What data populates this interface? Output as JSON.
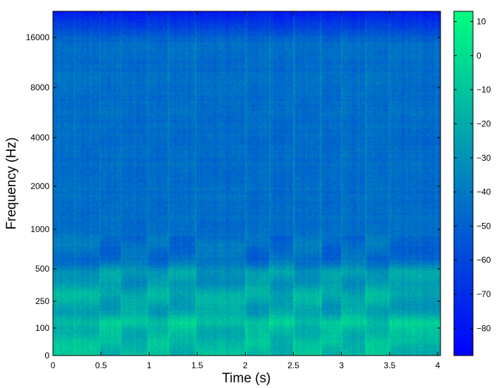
{
  "chart_data": {
    "type": "heatmap",
    "title": "",
    "xlabel": "Time (s)",
    "ylabel": "Frequency (Hz)",
    "xlim": [
      0,
      4.03
    ],
    "x_ticks": [
      0,
      0.5,
      1,
      1.5,
      2,
      2.5,
      3,
      3.5,
      4
    ],
    "x_tick_labels": [
      "0",
      "0.5",
      "1",
      "1.5",
      "2",
      "2.5",
      "3",
      "3.5",
      "4"
    ],
    "y_scale": "warped frequency (spectrogram)",
    "ylim": [
      0,
      22050
    ],
    "y_ticks": [
      0,
      100,
      250,
      500,
      1000,
      2000,
      4000,
      8000,
      16000
    ],
    "y_tick_labels": [
      "0",
      "100",
      "250",
      "500",
      "1000",
      "2000",
      "4000",
      "8000",
      "16000"
    ],
    "colorbar": {
      "range": [
        -88,
        13
      ],
      "ticks": [
        10,
        0,
        -10,
        -20,
        -30,
        -40,
        -50,
        -60,
        -70,
        -80
      ],
      "tick_labels": [
        "10",
        "0",
        "−10",
        "−20",
        "−30",
        "−40",
        "−50",
        "−60",
        "−70",
        "−80"
      ],
      "colormap": [
        "#0000ff",
        "#00ff80"
      ]
    },
    "features": {
      "background_level_db": -45,
      "top_band_db": -78,
      "low_freq_level_db": -15,
      "note_onsets_s": [
        0.22,
        0.48,
        0.7,
        0.98,
        1.2,
        1.48,
        2.0,
        2.25,
        2.5,
        2.78,
        3.0,
        3.25,
        3.5
      ]
    }
  }
}
